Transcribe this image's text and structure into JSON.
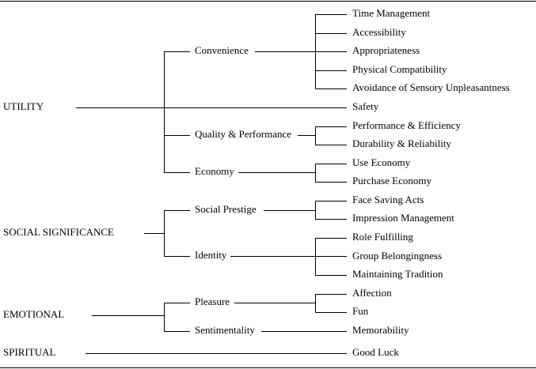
{
  "categories": [
    {
      "label": "UTILITY",
      "subgroups": [
        {
          "label": "Convenience",
          "items": [
            "Time Management",
            "Accessibility",
            "Appropriateness",
            "Physical Compatibility",
            "Avoidance of Sensory Unpleasantness"
          ]
        },
        {
          "items": [
            "Safety"
          ]
        },
        {
          "label": "Quality & Performance",
          "items": [
            "Performance & Efficiency",
            "Durability & Reliability"
          ]
        },
        {
          "label": "Economy",
          "items": [
            "Use Economy",
            "Purchase Economy"
          ]
        }
      ]
    },
    {
      "label": "SOCIAL SIGNIFICANCE",
      "subgroups": [
        {
          "label": "Social Prestige",
          "items": [
            "Face Saving Acts",
            "Impression Management"
          ]
        },
        {
          "label": "Identity",
          "items": [
            "Role Fulfilling",
            "Group Belongingness",
            "Maintaining Tradition"
          ]
        }
      ]
    },
    {
      "label": "EMOTIONAL",
      "subgroups": [
        {
          "label": "Pleasure",
          "items": [
            "Affection",
            "Fun"
          ]
        },
        {
          "label": "Sentimentality",
          "items": [
            "Memorability"
          ]
        }
      ]
    },
    {
      "label": "SPIRITUAL",
      "subgroups": [
        {
          "items": [
            "Good Luck"
          ]
        }
      ]
    }
  ]
}
